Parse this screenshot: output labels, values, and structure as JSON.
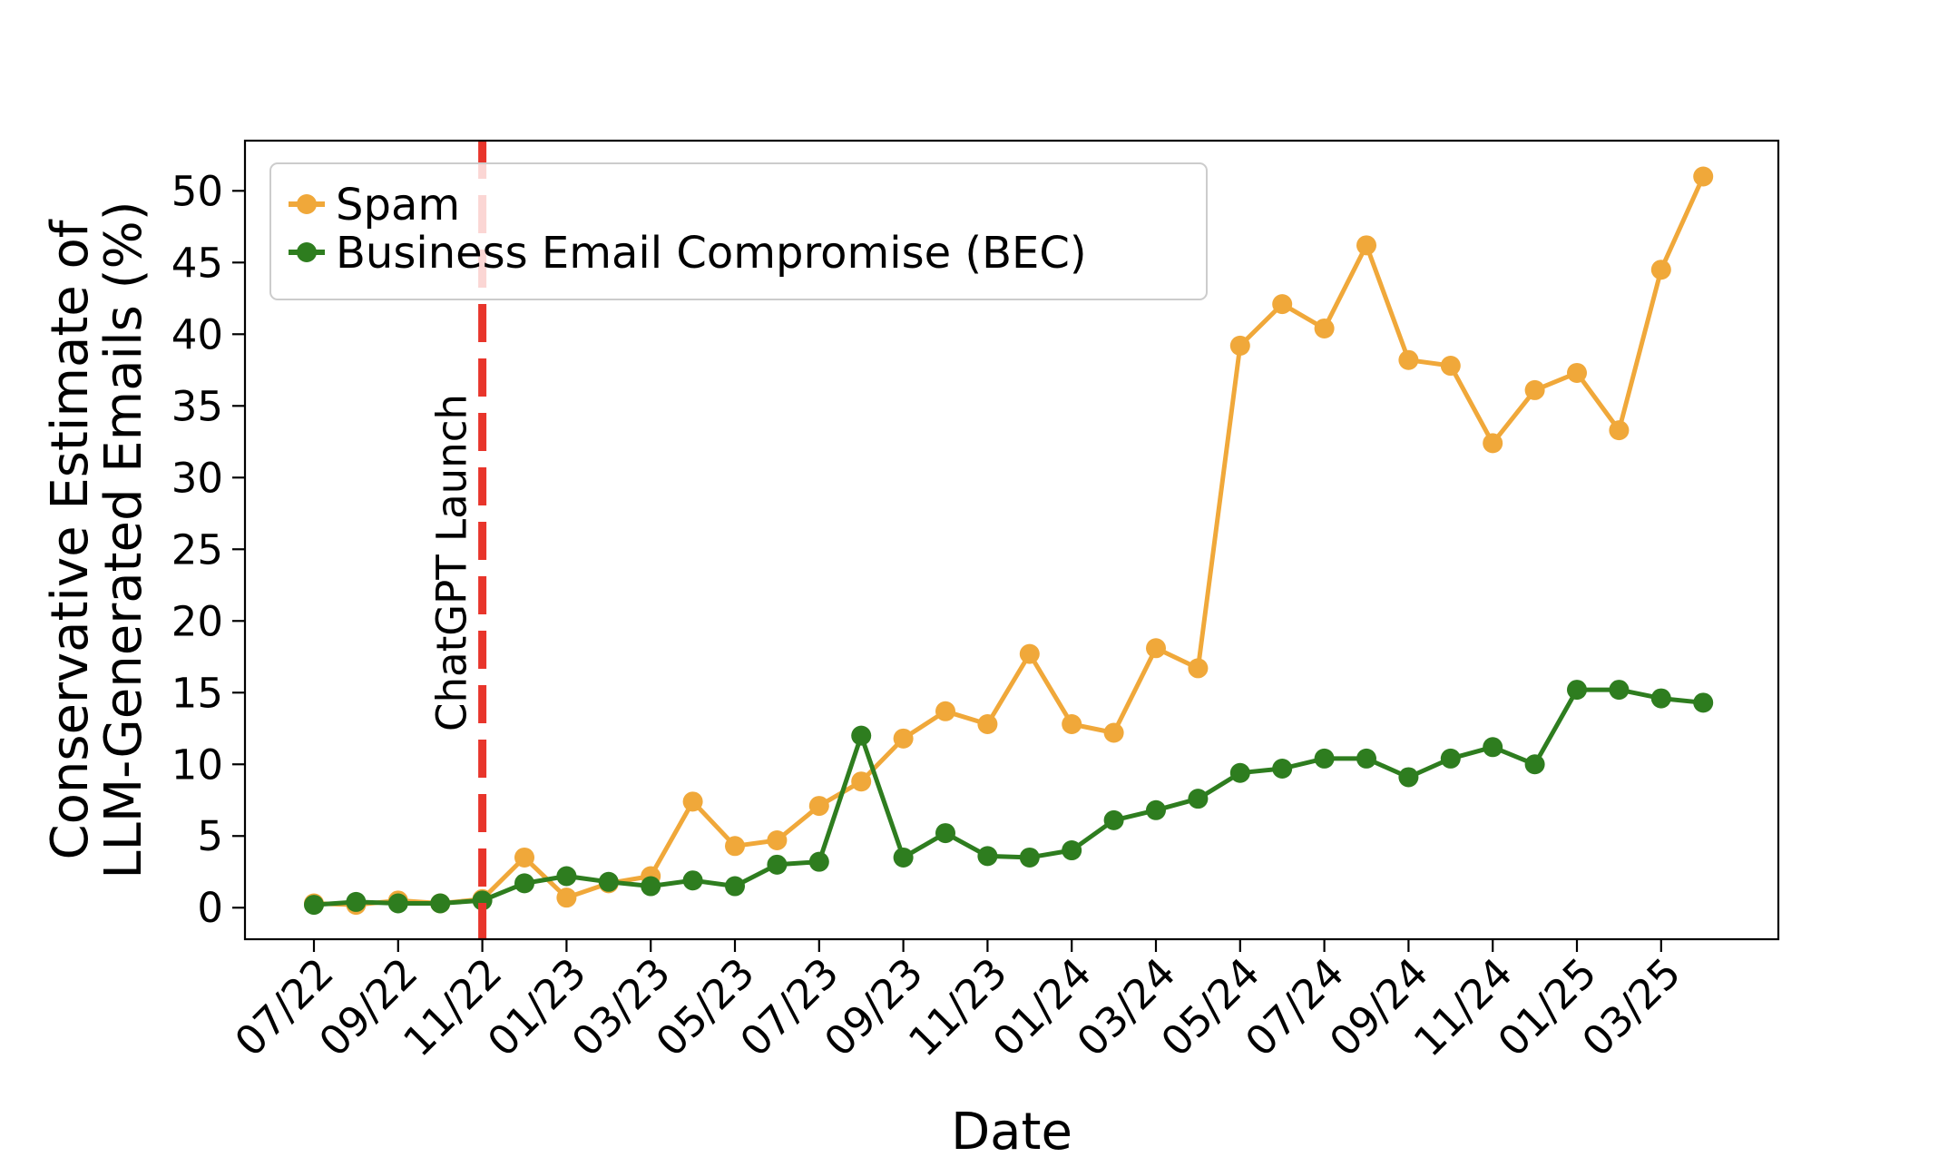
{
  "chart_data": {
    "type": "line",
    "xlabel": "Date",
    "ylabel": [
      "Conservative Estimate of",
      "LLM-Generated Emails (%)"
    ],
    "x": [
      "07/22",
      "08/22",
      "09/22",
      "10/22",
      "11/22",
      "12/22",
      "01/23",
      "02/23",
      "03/23",
      "04/23",
      "05/23",
      "06/23",
      "07/23",
      "08/23",
      "09/23",
      "10/23",
      "11/23",
      "12/23",
      "01/24",
      "02/24",
      "03/24",
      "04/24",
      "05/24",
      "06/24",
      "07/24",
      "08/24",
      "09/24",
      "10/24",
      "11/24",
      "12/24",
      "01/25",
      "02/25",
      "03/25",
      "04/25"
    ],
    "xticks": [
      "07/22",
      "09/22",
      "11/22",
      "01/23",
      "03/23",
      "05/23",
      "07/23",
      "09/23",
      "11/23",
      "01/24",
      "03/24",
      "05/24",
      "07/24",
      "09/24",
      "11/24",
      "01/25",
      "03/25"
    ],
    "ylim": [
      -2.2,
      53.5
    ],
    "yticks": [
      0,
      5,
      10,
      15,
      20,
      25,
      30,
      35,
      40,
      45,
      50
    ],
    "grid": false,
    "legend_position": "top-left",
    "series": [
      {
        "name": "Spam",
        "color": "#f0a83a",
        "values": [
          0.3,
          0.2,
          0.5,
          0.3,
          0.6,
          3.5,
          0.7,
          1.7,
          2.2,
          7.4,
          4.3,
          4.7,
          7.1,
          8.8,
          11.8,
          13.7,
          12.8,
          17.7,
          12.8,
          12.2,
          18.1,
          16.7,
          39.2,
          42.1,
          40.4,
          46.2,
          38.2,
          37.8,
          32.4,
          36.1,
          37.3,
          33.3,
          44.5,
          51.0
        ]
      },
      {
        "name": "Business Email Compromise (BEC)",
        "color": "#2e7d1f",
        "values": [
          0.2,
          0.4,
          0.3,
          0.3,
          0.5,
          1.7,
          2.2,
          1.8,
          1.5,
          1.9,
          1.5,
          3.0,
          3.2,
          12.0,
          3.5,
          5.2,
          3.6,
          3.5,
          4.0,
          6.1,
          6.8,
          7.6,
          9.4,
          9.7,
          10.4,
          10.4,
          9.1,
          10.4,
          11.2,
          10.0,
          15.2,
          15.2,
          14.6,
          14.3
        ]
      }
    ],
    "annotations": [
      {
        "label": "ChatGPT Launch",
        "x": "11/22",
        "color": "#e8352b",
        "style": "dashed"
      }
    ]
  }
}
